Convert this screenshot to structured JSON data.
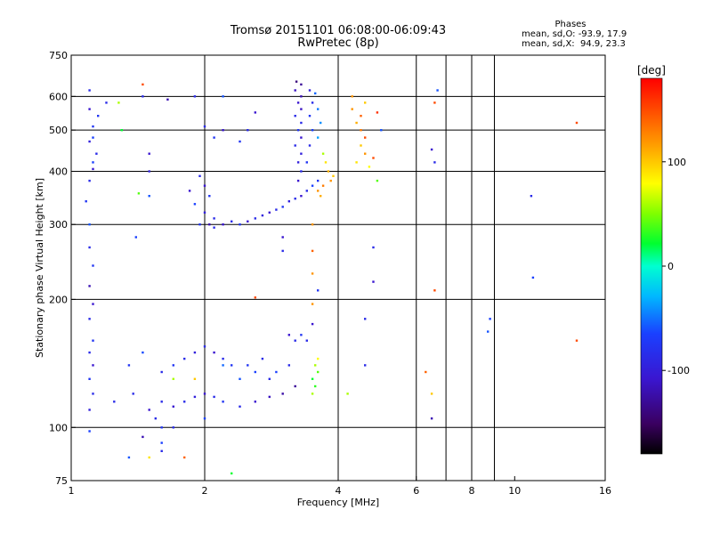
{
  "header": {
    "title": "Tromsø 20151101 06:08:00-06:09:43",
    "subtitle": "RwPretec (8p)"
  },
  "phases": {
    "title": "Phases",
    "line_o": "mean, sd,O: -93.9, 17.9",
    "line_x": "mean, sd,X:  94.9, 23.3"
  },
  "colorbar": {
    "unit": "[deg]",
    "ticks": [
      {
        "value": 100,
        "label": "100"
      },
      {
        "value": 0,
        "label": "0"
      },
      {
        "value": -100,
        "label": "-100"
      }
    ],
    "range": [
      -180,
      180
    ]
  },
  "chart_data": {
    "type": "scatter",
    "title": "Tromsø 20151101 06:08:00-06:09:43",
    "subtitle": "RwPretec (8p)",
    "xlabel": "Frequency [MHz]",
    "ylabel": "Stationary phase Virtual Height [km]",
    "xscale": "log",
    "yscale": "log",
    "xlim": [
      1,
      16
    ],
    "ylim": [
      75,
      750
    ],
    "xticks": [
      1,
      2,
      4,
      6,
      8,
      10,
      16
    ],
    "xtick_labels": [
      "1",
      "2",
      "4",
      "6",
      "8",
      "10",
      "16"
    ],
    "xgrid": [
      2,
      4,
      6,
      7,
      8,
      9
    ],
    "yticks": [
      75,
      100,
      200,
      300,
      400,
      500,
      600,
      750
    ],
    "ytick_labels": [
      "75",
      "100",
      "200",
      "300",
      "400",
      "500",
      "600",
      "750"
    ],
    "ygrid": [
      100,
      200,
      300,
      400,
      500,
      600
    ],
    "color_by": "phase [deg]",
    "series": [
      {
        "points": [
          [
            1.1,
            620,
            -100
          ],
          [
            1.1,
            560,
            -110
          ],
          [
            1.12,
            510,
            -95
          ],
          [
            1.1,
            470,
            -105
          ],
          [
            1.12,
            420,
            -90
          ],
          [
            1.1,
            380,
            -100
          ],
          [
            1.08,
            340,
            -95
          ],
          [
            1.1,
            300,
            -80
          ],
          [
            1.1,
            215,
            -120
          ],
          [
            1.12,
            195,
            -110
          ],
          [
            1.1,
            180,
            -100
          ],
          [
            1.12,
            160,
            -95
          ],
          [
            1.1,
            150,
            -100
          ],
          [
            1.12,
            140,
            -110
          ],
          [
            1.1,
            130,
            -95
          ],
          [
            1.12,
            120,
            -100
          ],
          [
            1.1,
            110,
            -105
          ],
          [
            1.1,
            98,
            -90
          ],
          [
            1.25,
            115,
            -100
          ],
          [
            1.35,
            140,
            -95
          ],
          [
            1.38,
            120,
            -100
          ],
          [
            1.45,
            150,
            -85
          ],
          [
            1.4,
            280,
            -90
          ],
          [
            1.45,
            600,
            -100
          ],
          [
            1.5,
            440,
            -110
          ],
          [
            1.5,
            400,
            -105
          ],
          [
            1.5,
            350,
            -80
          ],
          [
            1.42,
            355,
            40
          ],
          [
            1.28,
            580,
            60
          ],
          [
            1.3,
            500,
            20
          ],
          [
            1.45,
            640,
            150
          ],
          [
            1.65,
            590,
            -120
          ],
          [
            1.6,
            100,
            -95
          ],
          [
            1.55,
            105,
            -100
          ],
          [
            1.5,
            110,
            -110
          ],
          [
            1.45,
            95,
            -120
          ],
          [
            1.6,
            92,
            -90
          ],
          [
            1.95,
            390,
            -100
          ],
          [
            2.0,
            370,
            -110
          ],
          [
            2.05,
            350,
            -95
          ],
          [
            1.9,
            335,
            -90
          ],
          [
            2.0,
            320,
            -105
          ],
          [
            2.1,
            310,
            -100
          ],
          [
            2.05,
            300,
            -120
          ],
          [
            1.85,
            360,
            -110
          ],
          [
            1.95,
            300,
            -95
          ],
          [
            2.1,
            295,
            -100
          ],
          [
            2.2,
            300,
            -110
          ],
          [
            2.3,
            305,
            -100
          ],
          [
            2.4,
            300,
            -95
          ],
          [
            2.5,
            305,
            -110
          ],
          [
            2.6,
            310,
            -100
          ],
          [
            2.7,
            315,
            -105
          ],
          [
            2.8,
            320,
            -110
          ],
          [
            2.9,
            325,
            -100
          ],
          [
            3.0,
            330,
            -95
          ],
          [
            3.1,
            340,
            -105
          ],
          [
            3.2,
            345,
            -100
          ],
          [
            3.3,
            350,
            -110
          ],
          [
            3.4,
            360,
            -100
          ],
          [
            3.5,
            370,
            -90
          ],
          [
            3.6,
            380,
            -95
          ],
          [
            3.3,
            400,
            -100
          ],
          [
            3.3,
            440,
            -105
          ],
          [
            3.3,
            480,
            -110
          ],
          [
            3.3,
            520,
            -100
          ],
          [
            3.3,
            560,
            -115
          ],
          [
            3.3,
            600,
            -120
          ],
          [
            3.3,
            640,
            -130
          ],
          [
            3.25,
            380,
            -110
          ],
          [
            3.25,
            420,
            -105
          ],
          [
            3.2,
            460,
            -100
          ],
          [
            3.25,
            500,
            -95
          ],
          [
            3.2,
            540,
            -100
          ],
          [
            3.25,
            580,
            -110
          ],
          [
            3.2,
            620,
            -115
          ],
          [
            3.22,
            650,
            -140
          ],
          [
            3.4,
            420,
            -95
          ],
          [
            3.45,
            460,
            -100
          ],
          [
            3.5,
            500,
            -90
          ],
          [
            3.45,
            540,
            -95
          ],
          [
            3.5,
            580,
            -100
          ],
          [
            3.45,
            620,
            -105
          ],
          [
            3.55,
            610,
            -70
          ],
          [
            3.6,
            560,
            -60
          ],
          [
            3.65,
            520,
            -50
          ],
          [
            3.6,
            480,
            -40
          ],
          [
            3.7,
            440,
            60
          ],
          [
            3.75,
            420,
            90
          ],
          [
            3.8,
            400,
            110
          ],
          [
            3.85,
            380,
            120
          ],
          [
            3.9,
            390,
            100
          ],
          [
            3.6,
            360,
            120
          ],
          [
            3.65,
            350,
            110
          ],
          [
            3.7,
            370,
            130
          ],
          [
            4.3,
            560,
            120
          ],
          [
            4.4,
            520,
            110
          ],
          [
            4.5,
            500,
            130
          ],
          [
            4.6,
            480,
            150
          ],
          [
            4.5,
            460,
            100
          ],
          [
            4.6,
            440,
            120
          ],
          [
            4.4,
            420,
            90
          ],
          [
            4.7,
            410,
            80
          ],
          [
            4.8,
            430,
            150
          ],
          [
            4.5,
            540,
            140
          ],
          [
            4.6,
            580,
            100
          ],
          [
            4.9,
            550,
            160
          ],
          [
            4.3,
            600,
            120
          ],
          [
            2.0,
            510,
            -100
          ],
          [
            2.2,
            500,
            -110
          ],
          [
            2.1,
            480,
            -95
          ],
          [
            2.5,
            500,
            -100
          ],
          [
            2.6,
            550,
            -110
          ],
          [
            2.4,
            470,
            -95
          ],
          [
            2.2,
            600,
            -80
          ],
          [
            1.9,
            600,
            -100
          ],
          [
            3.5,
            300,
            120
          ],
          [
            3.5,
            260,
            140
          ],
          [
            3.5,
            230,
            120
          ],
          [
            3.0,
            260,
            -100
          ],
          [
            3.6,
            210,
            -95
          ],
          [
            3.5,
            195,
            120
          ],
          [
            2.6,
            202,
            150
          ],
          [
            3.0,
            280,
            -110
          ],
          [
            1.6,
            135,
            -100
          ],
          [
            1.7,
            140,
            -95
          ],
          [
            1.8,
            145,
            -100
          ],
          [
            1.9,
            150,
            -105
          ],
          [
            2.0,
            155,
            -100
          ],
          [
            2.1,
            150,
            -110
          ],
          [
            2.2,
            145,
            -100
          ],
          [
            2.3,
            140,
            -95
          ],
          [
            1.6,
            115,
            -100
          ],
          [
            1.7,
            112,
            -110
          ],
          [
            1.8,
            115,
            -100
          ],
          [
            1.9,
            118,
            -105
          ],
          [
            2.0,
            120,
            -110
          ],
          [
            2.1,
            118,
            -100
          ],
          [
            2.2,
            115,
            -95
          ],
          [
            2.4,
            112,
            -100
          ],
          [
            2.6,
            115,
            -110
          ],
          [
            2.8,
            118,
            -115
          ],
          [
            3.0,
            120,
            -125
          ],
          [
            3.2,
            125,
            -130
          ],
          [
            1.7,
            130,
            60
          ],
          [
            1.9,
            130,
            100
          ],
          [
            2.2,
            140,
            -70
          ],
          [
            2.4,
            130,
            -80
          ],
          [
            2.6,
            135,
            -90
          ],
          [
            2.8,
            130,
            -100
          ],
          [
            2.5,
            140,
            -95
          ],
          [
            2.7,
            145,
            -100
          ],
          [
            2.9,
            135,
            -90
          ],
          [
            3.1,
            140,
            -100
          ],
          [
            3.1,
            165,
            -110
          ],
          [
            3.2,
            160,
            -100
          ],
          [
            3.3,
            165,
            -95
          ],
          [
            3.4,
            160,
            -100
          ],
          [
            3.5,
            175,
            -110
          ],
          [
            3.6,
            145,
            80
          ],
          [
            3.55,
            140,
            60
          ],
          [
            3.6,
            135,
            40
          ],
          [
            3.5,
            130,
            20
          ],
          [
            3.55,
            125,
            30
          ],
          [
            3.5,
            120,
            60
          ],
          [
            2.0,
            105,
            -90
          ],
          [
            2.3,
            78,
            20
          ],
          [
            1.5,
            85,
            90
          ],
          [
            1.35,
            85,
            -80
          ],
          [
            1.6,
            88,
            -100
          ],
          [
            1.7,
            100,
            -100
          ],
          [
            1.8,
            85,
            140
          ],
          [
            4.2,
            120,
            60
          ],
          [
            4.6,
            180,
            -100
          ],
          [
            4.6,
            140,
            -100
          ],
          [
            4.8,
            265,
            -100
          ],
          [
            4.8,
            220,
            -110
          ],
          [
            4.9,
            380,
            40
          ],
          [
            5.0,
            500,
            -80
          ],
          [
            6.5,
            450,
            -110
          ],
          [
            6.6,
            420,
            -100
          ],
          [
            6.6,
            210,
            150
          ],
          [
            6.5,
            120,
            100
          ],
          [
            6.3,
            135,
            140
          ],
          [
            6.5,
            105,
            -120
          ],
          [
            6.7,
            620,
            -80
          ],
          [
            6.6,
            580,
            150
          ],
          [
            8.8,
            180,
            -90
          ],
          [
            8.7,
            168,
            -80
          ],
          [
            10.9,
            350,
            -100
          ],
          [
            11.0,
            225,
            -90
          ],
          [
            13.8,
            520,
            150
          ],
          [
            13.8,
            160,
            150
          ],
          [
            1.2,
            580,
            -100
          ],
          [
            1.15,
            540,
            -95
          ],
          [
            1.12,
            480,
            -90
          ],
          [
            1.14,
            440,
            -100
          ],
          [
            1.12,
            405,
            -110
          ],
          [
            1.1,
            265,
            -100
          ],
          [
            1.12,
            240,
            -95
          ]
        ]
      }
    ]
  }
}
